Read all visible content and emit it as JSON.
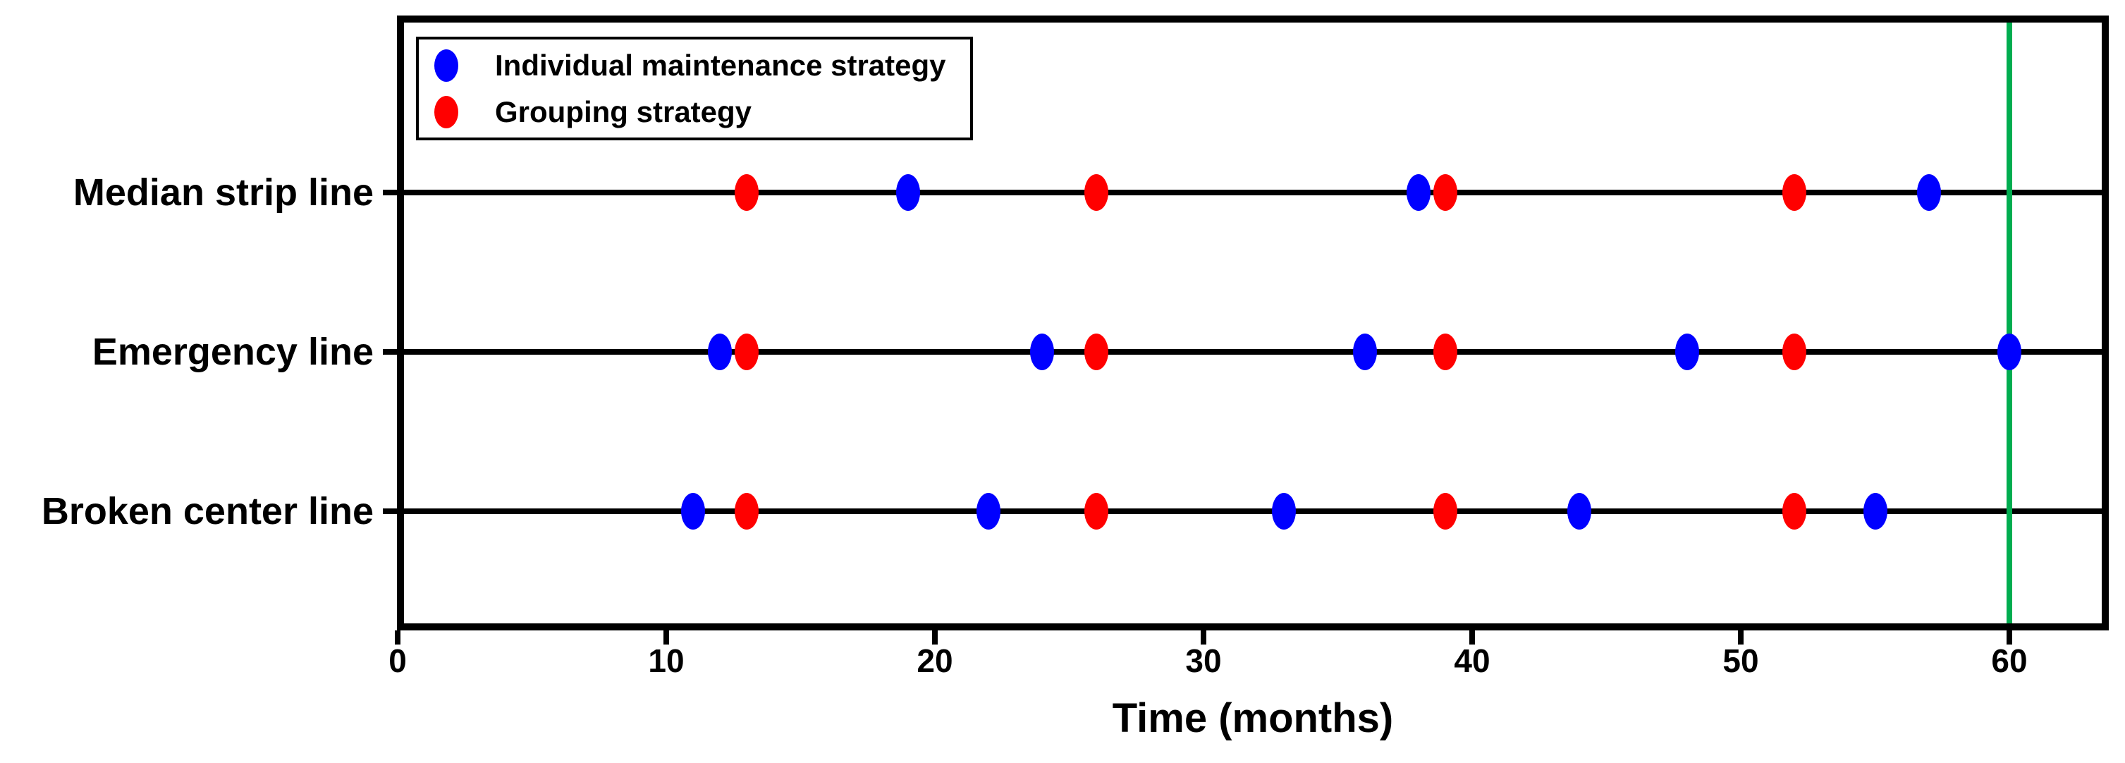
{
  "chart_data": {
    "type": "scatter",
    "title": "",
    "xlabel": "Time (months)",
    "ylabel": "",
    "x_ticks": [
      0,
      10,
      20,
      30,
      40,
      50,
      60
    ],
    "x_tick_labels": [
      "0",
      "10",
      "20",
      "30",
      "40",
      "50",
      "60"
    ],
    "xlim": [
      0,
      63.7
    ],
    "grid": false,
    "legend_position": "upper-left-inside",
    "reference_line": {
      "x": 60,
      "color": "#00ad50",
      "orientation": "vertical"
    },
    "series_meta": [
      {
        "key": "individual",
        "name": "Individual maintenance strategy",
        "color": "#0000ff",
        "marker": "ellipse"
      },
      {
        "key": "grouping",
        "name": "Grouping strategy",
        "color": "#ff0000",
        "marker": "ellipse"
      }
    ],
    "rows": [
      {
        "label": "Median strip line",
        "individual": [
          19,
          38,
          57
        ],
        "grouping": [
          13,
          26,
          39,
          52
        ]
      },
      {
        "label": "Emergency line",
        "individual": [
          12,
          24,
          36,
          48,
          60
        ],
        "grouping": [
          13,
          26,
          39,
          52
        ]
      },
      {
        "label": "Broken center line",
        "individual": [
          11,
          22,
          33,
          44,
          55
        ],
        "grouping": [
          13,
          26,
          39,
          52
        ]
      }
    ],
    "colors": {
      "axis": "#000000",
      "individual": "#0000ff",
      "grouping": "#ff0000",
      "reference": "#00ad50"
    }
  }
}
